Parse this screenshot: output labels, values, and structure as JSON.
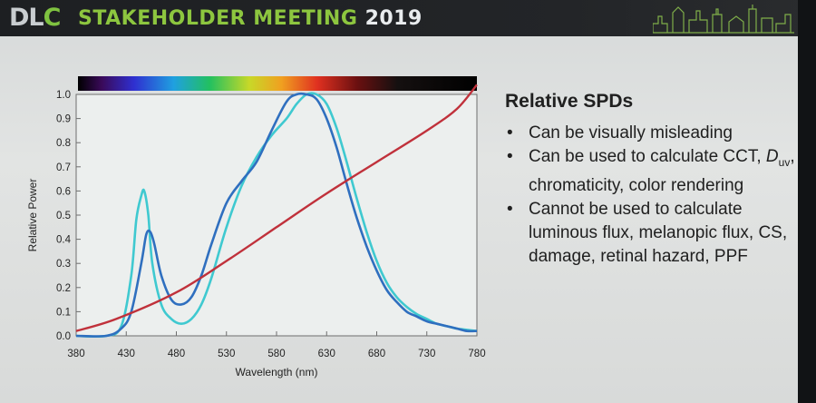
{
  "header": {
    "logo_text_left": "DL",
    "logo_text_c": "C",
    "title": "STAKEHOLDER MEETING",
    "year": "2019"
  },
  "panel": {
    "heading": "Relative SPDs",
    "bullets": [
      "Can be visually misleading",
      "Can be used to calculate CCT, Duv, chromaticity, color rendering",
      "Cannot be used to calculate luminous flux, melanopic flux, CS, damage, retinal hazard, PPF"
    ],
    "bullet2_prefix": "Can be used to calculate CCT, ",
    "bullet2_D": "D",
    "bullet2_sub": "uv",
    "bullet2_suffix": ", chromaticity, color rendering"
  },
  "chart_data": {
    "type": "line",
    "title": "",
    "xlabel": "Wavelength (nm)",
    "ylabel": "Relative Power",
    "xlim": [
      380,
      780
    ],
    "ylim": [
      0.0,
      1.0
    ],
    "x_ticks": [
      "380",
      "430",
      "480",
      "530",
      "580",
      "630",
      "680",
      "730",
      "780"
    ],
    "y_ticks": [
      "0.0",
      "0.1",
      "0.2",
      "0.3",
      "0.4",
      "0.5",
      "0.6",
      "0.7",
      "0.8",
      "0.9",
      "1.0"
    ],
    "spectrum_bar": true,
    "series": [
      {
        "color": "#3fc9d0",
        "x": [
          380,
          410,
          425,
          435,
          440,
          445,
          448,
          452,
          456,
          465,
          475,
          485,
          495,
          505,
          515,
          530,
          545,
          560,
          575,
          590,
          600,
          610,
          620,
          630,
          640,
          650,
          660,
          670,
          680,
          690,
          700,
          710,
          720,
          730,
          740,
          750,
          760,
          770,
          780
        ],
        "y": [
          0.0,
          0.0,
          0.04,
          0.25,
          0.48,
          0.58,
          0.6,
          0.5,
          0.3,
          0.13,
          0.07,
          0.05,
          0.07,
          0.13,
          0.24,
          0.45,
          0.62,
          0.74,
          0.83,
          0.9,
          0.96,
          1.0,
          1.0,
          0.96,
          0.86,
          0.72,
          0.57,
          0.43,
          0.31,
          0.22,
          0.16,
          0.12,
          0.09,
          0.07,
          0.05,
          0.04,
          0.03,
          0.025,
          0.02
        ]
      },
      {
        "color": "#2f6fbf",
        "x": [
          380,
          410,
          425,
          435,
          445,
          450,
          454,
          458,
          465,
          475,
          485,
          495,
          505,
          515,
          530,
          545,
          560,
          575,
          590,
          600,
          610,
          620,
          630,
          640,
          650,
          660,
          670,
          680,
          690,
          700,
          710,
          720,
          730,
          740,
          750,
          760,
          770,
          780
        ],
        "y": [
          0.0,
          0.0,
          0.03,
          0.1,
          0.3,
          0.42,
          0.43,
          0.38,
          0.25,
          0.15,
          0.13,
          0.16,
          0.25,
          0.38,
          0.55,
          0.64,
          0.72,
          0.85,
          0.97,
          1.0,
          1.0,
          0.98,
          0.9,
          0.78,
          0.63,
          0.49,
          0.37,
          0.27,
          0.19,
          0.14,
          0.1,
          0.08,
          0.06,
          0.05,
          0.04,
          0.03,
          0.02,
          0.02
        ]
      },
      {
        "color": "#c0313b",
        "x": [
          380,
          420,
          480,
          530,
          580,
          630,
          680,
          730,
          760,
          780
        ],
        "y": [
          0.02,
          0.07,
          0.18,
          0.31,
          0.45,
          0.59,
          0.72,
          0.85,
          0.94,
          1.04
        ]
      }
    ]
  }
}
